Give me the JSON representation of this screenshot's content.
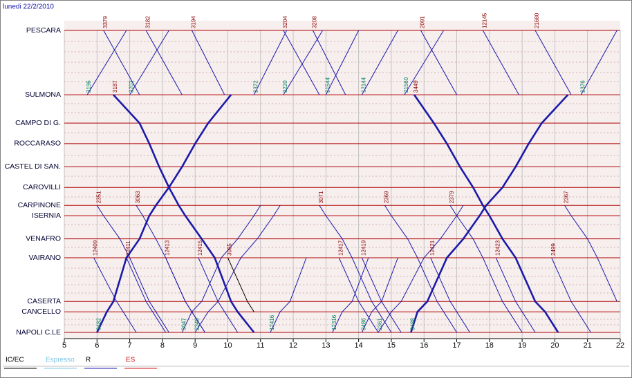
{
  "chart_data": {
    "type": "train-graph",
    "title": "lunedi 22/2/2010",
    "xlim": [
      5,
      22
    ],
    "xticks": [
      5,
      6,
      7,
      8,
      9,
      10,
      11,
      12,
      13,
      14,
      15,
      16,
      17,
      18,
      19,
      20,
      21,
      22
    ],
    "ylim": [
      0,
      352
    ],
    "stations": [
      {
        "name": "PESCARA",
        "km": 0
      },
      {
        "name": "SULMONA",
        "km": 75
      },
      {
        "name": "CAMPO DI G.",
        "km": 108
      },
      {
        "name": "ROCCARASO",
        "km": 132
      },
      {
        "name": "CASTEL DI SAN.",
        "km": 159
      },
      {
        "name": "CAROVILLI",
        "km": 183
      },
      {
        "name": "CARPINONE",
        "km": 204
      },
      {
        "name": "ISERNIA",
        "km": 216
      },
      {
        "name": "VENAFRO",
        "km": 243
      },
      {
        "name": "VAIRANO",
        "km": 265
      },
      {
        "name": "CASERTA",
        "km": 316
      },
      {
        "name": "CANCELLO",
        "km": 328
      },
      {
        "name": "NAPOLI C.LE",
        "km": 352
      }
    ],
    "series": [
      {
        "name": "IC/EC",
        "color": "#000000"
      },
      {
        "name": "Espresso",
        "color": "#7cc4e4"
      },
      {
        "name": "R",
        "color": "#1a1aa8"
      },
      {
        "name": "ES",
        "color": "#d01010"
      }
    ],
    "trains": [
      {
        "number": "3379",
        "service": 2,
        "label_color": "#8b0000",
        "times": [
          6.2,
          7.3
        ]
      },
      {
        "number": "3182",
        "service": 2,
        "label_color": "#8b0000",
        "times": [
          7.5,
          8.6
        ]
      },
      {
        "number": "3194",
        "service": 2,
        "label_color": "#8b0000",
        "times": [
          8.9,
          9.9
        ]
      },
      {
        "number": "3204",
        "service": 2,
        "label_color": "#8b0000",
        "times": [
          11.7,
          12.8
        ]
      },
      {
        "number": "3208",
        "service": 2,
        "label_color": "#8b0000",
        "times": [
          12.6,
          13.6
        ]
      },
      {
        "number": "2091",
        "service": 2,
        "label_color": "#8b0000",
        "times": [
          15.9,
          17.0
        ]
      },
      {
        "number": "12145",
        "service": 2,
        "label_color": "#8b0000",
        "times": [
          17.8,
          18.9
        ]
      },
      {
        "number": "21680",
        "service": 2,
        "label_color": "#8b0000",
        "times": [
          19.4,
          20.5
        ]
      },
      {
        "number": "3196",
        "service": 2,
        "label_color": "#008060",
        "times": [
          6.9,
          5.7
        ]
      },
      {
        "number": "3202",
        "service": 2,
        "label_color": "#008060",
        "times": [
          8.2,
          7.0
        ]
      },
      {
        "number": "2372",
        "service": 2,
        "label_color": "#008060",
        "times": [
          11.8,
          10.8
        ]
      },
      {
        "number": "3220",
        "service": 2,
        "label_color": "#008060",
        "times": [
          12.9,
          11.7
        ]
      },
      {
        "number": "21544",
        "service": 2,
        "label_color": "#008060",
        "times": [
          14.0,
          13.0
        ]
      },
      {
        "number": "12144",
        "service": 2,
        "label_color": "#008060",
        "times": [
          15.2,
          14.1
        ]
      },
      {
        "number": "21560",
        "service": 2,
        "label_color": "#008060",
        "times": [
          16.6,
          15.4
        ]
      },
      {
        "number": "2376",
        "service": 2,
        "label_color": "#008060",
        "times": [
          21.9,
          20.8
        ]
      },
      {
        "number": "3187",
        "service": 2,
        "label_color": "#8b0000",
        "thick": true,
        "times": [
          null,
          6.5,
          7.3,
          7.6,
          7.9,
          8.2,
          8.5,
          8.7,
          9.2,
          9.6,
          10.1,
          10.3,
          10.8
        ]
      },
      {
        "number": "3482",
        "service": 2,
        "label_color": "#008060",
        "thick": true,
        "times": [
          null,
          10.1,
          9.4,
          9.0,
          8.6,
          8.2,
          7.8,
          7.6,
          7.3,
          6.9,
          6.5,
          6.3,
          6.0
        ]
      },
      {
        "number": "3449",
        "service": 2,
        "label_color": "#8b0000",
        "thick": true,
        "times": [
          null,
          15.7,
          16.3,
          16.7,
          17.1,
          17.5,
          17.8,
          18.0,
          18.4,
          18.8,
          19.4,
          19.7,
          20.1
        ]
      },
      {
        "number": "3488",
        "service": 2,
        "label_color": "#008060",
        "thick": true,
        "times": [
          null,
          20.4,
          19.6,
          19.2,
          18.8,
          18.4,
          17.9,
          17.7,
          17.2,
          16.7,
          16.1,
          15.8,
          15.6
        ]
      },
      {
        "number": "2351",
        "service": 2,
        "label_color": "#8b0000",
        "times": [
          null,
          null,
          null,
          null,
          null,
          null,
          6.0,
          6.2,
          6.7,
          7.0,
          7.6,
          7.8,
          8.2
        ]
      },
      {
        "number": "3063",
        "service": 2,
        "label_color": "#8b0000",
        "times": [
          null,
          null,
          null,
          null,
          null,
          null,
          7.2,
          7.4,
          7.8,
          8.1,
          8.7,
          8.9,
          9.3
        ]
      },
      {
        "number": "3071",
        "service": 2,
        "label_color": "#8b0000",
        "times": [
          null,
          null,
          null,
          null,
          null,
          null,
          12.8,
          13.0,
          13.5,
          13.8,
          14.4,
          14.6,
          15.0
        ]
      },
      {
        "number": "2369",
        "service": 2,
        "label_color": "#8b0000",
        "times": [
          null,
          null,
          null,
          null,
          null,
          null,
          14.8,
          15.0,
          15.5,
          15.8,
          16.4,
          16.6,
          17.0
        ]
      },
      {
        "number": "2379",
        "service": 2,
        "label_color": "#8b0000",
        "times": [
          null,
          null,
          null,
          null,
          null,
          null,
          16.8,
          17.0,
          17.5,
          17.8,
          18.4,
          18.6,
          19.0
        ]
      },
      {
        "number": "2367",
        "service": 2,
        "label_color": "#8b0000",
        "times": [
          null,
          null,
          null,
          null,
          null,
          null,
          20.3,
          20.5,
          21.0,
          21.3,
          21.9
        ]
      },
      {
        "number": "3047",
        "service": 2,
        "label_color": "#008060",
        "times": [
          null,
          null,
          null,
          null,
          null,
          null,
          11.0,
          10.8,
          10.3,
          9.8,
          9.2,
          8.9,
          8.6
        ]
      },
      {
        "number": "2349",
        "service": 2,
        "label_color": "#008060",
        "times": [
          null,
          null,
          null,
          null,
          null,
          null,
          11.6,
          11.4,
          10.9,
          10.4,
          9.7,
          9.4,
          9.0
        ]
      },
      {
        "number": "2361",
        "service": 2,
        "label_color": "#008060",
        "times": [
          null,
          null,
          null,
          null,
          null,
          null,
          17.2,
          17.0,
          16.5,
          16.0,
          15.3,
          15.0,
          14.6
        ]
      },
      {
        "number": "12409",
        "service": 2,
        "label_color": "#8b0000",
        "times": [
          null,
          null,
          null,
          null,
          null,
          null,
          null,
          null,
          null,
          5.9,
          6.6,
          6.8,
          7.2
        ]
      },
      {
        "number": "12411",
        "service": 2,
        "label_color": "#8b0000",
        "times": [
          null,
          null,
          null,
          null,
          null,
          null,
          null,
          null,
          null,
          6.9,
          7.5,
          7.7,
          8.1
        ]
      },
      {
        "number": "12413",
        "service": 2,
        "label_color": "#8b0000",
        "times": [
          null,
          null,
          null,
          null,
          null,
          null,
          null,
          null,
          null,
          8.1,
          8.7,
          8.9,
          9.3
        ]
      },
      {
        "number": "12415",
        "service": 2,
        "label_color": "#8b0000",
        "times": [
          null,
          null,
          null,
          null,
          null,
          null,
          null,
          null,
          null,
          9.1,
          9.7,
          9.9,
          10.3
        ]
      },
      {
        "number": "12417",
        "service": 2,
        "label_color": "#8b0000",
        "times": [
          null,
          null,
          null,
          null,
          null,
          null,
          null,
          null,
          null,
          13.4,
          14.0,
          14.2,
          14.6
        ]
      },
      {
        "number": "12419",
        "service": 2,
        "label_color": "#8b0000",
        "times": [
          null,
          null,
          null,
          null,
          null,
          null,
          null,
          null,
          null,
          14.1,
          14.7,
          14.9,
          15.3
        ]
      },
      {
        "number": "12421",
        "service": 2,
        "label_color": "#8b0000",
        "times": [
          null,
          null,
          null,
          null,
          null,
          null,
          null,
          null,
          null,
          16.2,
          16.8,
          17.0,
          17.4
        ]
      },
      {
        "number": "12423",
        "service": 2,
        "label_color": "#8b0000",
        "times": [
          null,
          null,
          null,
          null,
          null,
          null,
          null,
          null,
          null,
          18.2,
          18.8,
          19.0,
          19.4
        ]
      },
      {
        "number": "2499",
        "service": 2,
        "label_color": "#8b0000",
        "times": [
          null,
          null,
          null,
          null,
          null,
          null,
          null,
          null,
          null,
          19.9,
          20.5,
          20.7,
          21.1
        ]
      },
      {
        "number": "3065",
        "service": 0,
        "label_color": "#8b0000",
        "times": [
          null,
          null,
          null,
          null,
          null,
          null,
          null,
          null,
          null,
          10.0,
          10.6,
          10.8
        ]
      },
      {
        "number": "12416",
        "service": 2,
        "label_color": "#008060",
        "times": [
          null,
          null,
          null,
          null,
          null,
          null,
          null,
          null,
          null,
          12.4,
          11.9,
          11.6,
          11.3
        ]
      },
      {
        "number": "12316",
        "service": 2,
        "label_color": "#008060",
        "times": [
          null,
          null,
          null,
          null,
          null,
          null,
          null,
          null,
          null,
          14.3,
          13.8,
          13.5,
          13.2
        ]
      },
      {
        "number": "3486",
        "service": 2,
        "label_color": "#008060",
        "times": [
          null,
          null,
          null,
          null,
          null,
          null,
          null,
          null,
          null,
          15.2,
          14.7,
          14.4,
          14.1
        ]
      }
    ]
  }
}
